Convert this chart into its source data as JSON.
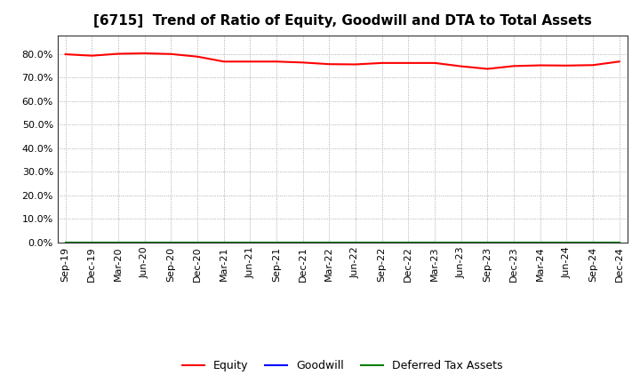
{
  "title": "[6715]  Trend of Ratio of Equity, Goodwill and DTA to Total Assets",
  "x_labels": [
    "Sep-19",
    "Dec-19",
    "Mar-20",
    "Jun-20",
    "Sep-20",
    "Dec-20",
    "Mar-21",
    "Jun-21",
    "Sep-21",
    "Dec-21",
    "Mar-22",
    "Jun-22",
    "Sep-22",
    "Dec-22",
    "Mar-23",
    "Jun-23",
    "Sep-23",
    "Dec-23",
    "Mar-24",
    "Jun-24",
    "Sep-24",
    "Dec-24"
  ],
  "equity": [
    0.799,
    0.793,
    0.801,
    0.803,
    0.8,
    0.789,
    0.768,
    0.768,
    0.768,
    0.764,
    0.757,
    0.756,
    0.762,
    0.762,
    0.762,
    0.748,
    0.737,
    0.749,
    0.752,
    0.751,
    0.753,
    0.768
  ],
  "goodwill": [
    0.0,
    0.0,
    0.0,
    0.0,
    0.0,
    0.0,
    0.0,
    0.0,
    0.0,
    0.0,
    0.0,
    0.0,
    0.0,
    0.0,
    0.0,
    0.0,
    0.0,
    0.0,
    0.0,
    0.0,
    0.0,
    0.0
  ],
  "dta": [
    0.0,
    0.0,
    0.0,
    0.0,
    0.0,
    0.0,
    0.0,
    0.0,
    0.0,
    0.0,
    0.0,
    0.0,
    0.0,
    0.0,
    0.0,
    0.0,
    0.0,
    0.0,
    0.0,
    0.0,
    0.0,
    0.0
  ],
  "equity_color": "#FF0000",
  "goodwill_color": "#0000FF",
  "dta_color": "#008000",
  "ylim": [
    0.0,
    0.88
  ],
  "yticks": [
    0.0,
    0.1,
    0.2,
    0.3,
    0.4,
    0.5,
    0.6,
    0.7,
    0.8
  ],
  "background_color": "#FFFFFF",
  "plot_bg_color": "#FFFFFF",
  "grid_color": "#999999",
  "legend_labels": [
    "Equity",
    "Goodwill",
    "Deferred Tax Assets"
  ],
  "title_fontsize": 11,
  "axis_fontsize": 8,
  "legend_fontsize": 9
}
